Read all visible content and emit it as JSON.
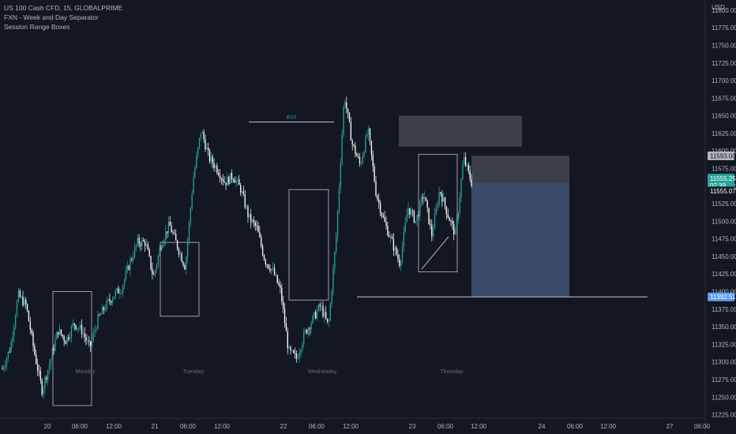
{
  "legend": {
    "symbol_line": "US 100 Cash CFD, 15, GLOBALPRIME",
    "indicator_1": "FXN - Week and Day Separator",
    "indicator_2": "Session Range Boxes"
  },
  "colors": {
    "background": "#131722",
    "up_candle": "#26a69a",
    "down_candle": "#ffffff",
    "box_border": "#b5a6b8",
    "supply_zone": "#4a4d57",
    "target_zone": "#3d4f6e",
    "price_badge": "#26a69a",
    "level_badge": "#b2b5be"
  },
  "chart_data": {
    "type": "candlestick",
    "symbol": "US 100 Cash CFD",
    "timeframe": "15",
    "broker": "GLOBALPRIME",
    "currency_label": "USD",
    "ylim": [
      11220,
      11810
    ],
    "y_ticks": [
      11225,
      11250,
      11275,
      11300,
      11325,
      11350,
      11375,
      11400,
      11425,
      11450,
      11475,
      11500,
      11525,
      11550,
      11575,
      11600,
      11625,
      11650,
      11675,
      11700,
      11725,
      11750,
      11775,
      11800
    ],
    "x_ticks": [
      "20",
      "06:00",
      "12:00",
      "21",
      "06:00",
      "12:00",
      "22",
      "06:00",
      "12:00",
      "23",
      "06:00",
      "12:00",
      "24",
      "06:00",
      "12:00",
      "27",
      "06:00"
    ],
    "day_labels": [
      "Monday",
      "Tuesday",
      "Wednesday",
      "Thursday"
    ],
    "price_path": [
      11290,
      11320,
      11395,
      11380,
      11315,
      11260,
      11300,
      11345,
      11330,
      11355,
      11345,
      11320,
      11360,
      11380,
      11395,
      11405,
      11440,
      11470,
      11470,
      11420,
      11470,
      11495,
      11465,
      11435,
      11560,
      11630,
      11590,
      11575,
      11555,
      11565,
      11545,
      11505,
      11490,
      11445,
      11430,
      11400,
      11315,
      11305,
      11340,
      11360,
      11380,
      11350,
      11480,
      11680,
      11610,
      11580,
      11630,
      11540,
      11500,
      11470,
      11440,
      11520,
      11500,
      11540,
      11480,
      11545,
      11510,
      11480,
      11590,
      11555
    ],
    "current_price": "11555.25",
    "countdown": "07:39",
    "price_labels": [
      "11593.00",
      "11555.07",
      "11392.51"
    ],
    "annotations": {
      "bos": "BOS",
      "bos_level": 11641
    },
    "session_boxes": [
      {
        "y_top": 11400,
        "y_bottom": 11238
      },
      {
        "y_top": 11470,
        "y_bottom": 11365
      },
      {
        "y_top": 11545,
        "y_bottom": 11388
      },
      {
        "y_top": 11595,
        "y_bottom": 11428
      }
    ],
    "zones": {
      "supply": {
        "y_top": 11650,
        "y_bottom": 11606
      },
      "short_risk": {
        "y_top": 11593,
        "y_bottom": 11555
      },
      "short_target": {
        "y_top": 11555,
        "y_bottom": 11392.51
      },
      "horizontal_level": 11392.51
    }
  }
}
